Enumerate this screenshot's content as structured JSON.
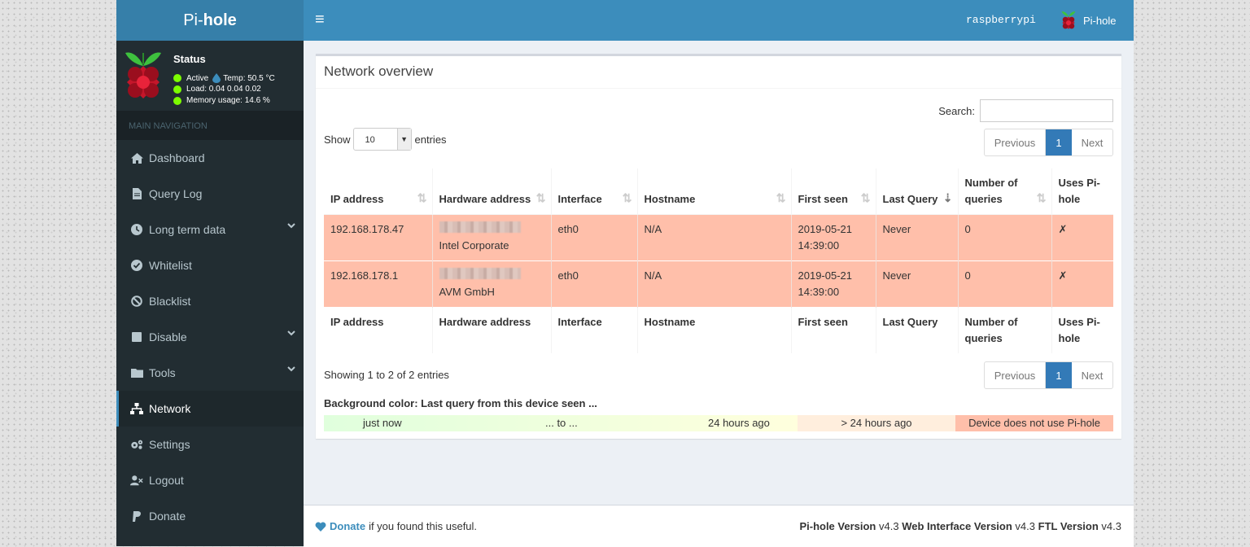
{
  "sidebar": {
    "logo": {
      "prefix": "Pi-",
      "bold": "hole"
    },
    "status": {
      "title": "Status",
      "active": "Active",
      "temp": "Temp: 50.5 °C",
      "load": "Load:  0.04  0.04  0.02",
      "memory": "Memory usage:  14.6 %"
    },
    "nav_header": "MAIN NAVIGATION",
    "items": [
      {
        "label": "Dashboard",
        "icon": "home-icon"
      },
      {
        "label": "Query Log",
        "icon": "file-icon"
      },
      {
        "label": "Long term data",
        "icon": "clock-icon",
        "expandable": true
      },
      {
        "label": "Whitelist",
        "icon": "check-circle-icon"
      },
      {
        "label": "Blacklist",
        "icon": "ban-icon"
      },
      {
        "label": "Disable",
        "icon": "stop-icon",
        "expandable": true
      },
      {
        "label": "Tools",
        "icon": "folder-icon",
        "expandable": true
      },
      {
        "label": "Network",
        "icon": "network-icon",
        "active": true
      },
      {
        "label": "Settings",
        "icon": "gears-icon"
      },
      {
        "label": "Logout",
        "icon": "user-times-icon"
      },
      {
        "label": "Donate",
        "icon": "paypal-icon"
      }
    ]
  },
  "header": {
    "toggle": "≡",
    "hostname": "raspberrypi",
    "user": "Pi-hole"
  },
  "main": {
    "title": "Network overview",
    "search_label": "Search:",
    "search_value": "",
    "show_prefix": "Show",
    "show_value": "10",
    "show_suffix": "entries",
    "pager": {
      "previous": "Previous",
      "current": "1",
      "next": "Next"
    },
    "columns": [
      "IP address",
      "Hardware address",
      "Interface",
      "Hostname",
      "First seen",
      "Last Query",
      "Number of queries",
      "Uses Pi-hole"
    ],
    "rows": [
      {
        "ip": "192.168.178.47",
        "vendor": "Intel Corporate",
        "iface": "eth0",
        "host": "N/A",
        "first_seen_date": "2019-05-21",
        "first_seen_time": "14:39:00",
        "last_query": "Never",
        "queries": "0",
        "uses": "✗"
      },
      {
        "ip": "192.168.178.1",
        "vendor": "AVM GmbH",
        "iface": "eth0",
        "host": "N/A",
        "first_seen_date": "2019-05-21",
        "first_seen_time": "14:39:00",
        "last_query": "Never",
        "queries": "0",
        "uses": "✗"
      }
    ],
    "showing": "Showing 1 to 2 of 2 entries",
    "legend_title": "Background color: Last query from this device seen ...",
    "legend": {
      "just_now": "just now",
      "to": "... to ...",
      "h24": "24 hours ago",
      "gt24": "> 24 hours ago",
      "none": "Device does not use Pi-hole"
    }
  },
  "footer": {
    "donate": "Donate",
    "donate_suffix": "if you found this useful.",
    "pihole_label": "Pi-hole Version",
    "pihole_ver": "v4.3",
    "web_label": "Web Interface Version",
    "web_ver": "v4.3",
    "ftl_label": "FTL Version",
    "ftl_ver": "v4.3"
  },
  "colors": {
    "accent": "#3c8dbc",
    "sidebar": "#222d32",
    "row_red": "#ffbfaa"
  }
}
